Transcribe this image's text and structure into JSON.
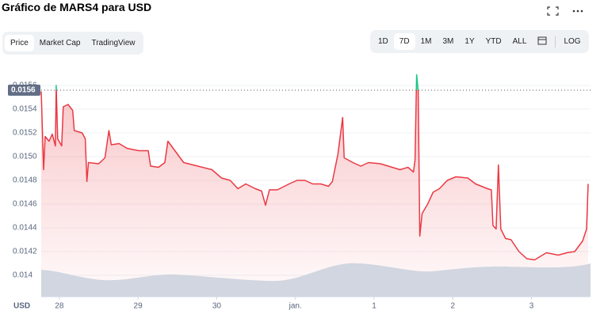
{
  "header": {
    "title": "Gráfico de MARS4 para USD",
    "tabs": [
      "Price",
      "Market Cap",
      "TradingView"
    ],
    "selected_tab": 0,
    "ranges": [
      "1D",
      "7D",
      "1M",
      "3M",
      "1Y",
      "YTD",
      "ALL"
    ],
    "selected_range": 1,
    "log_button": "LOG"
  },
  "chart_data": {
    "type": "line",
    "currency_label": "USD",
    "x": [
      -0.23,
      -0.2,
      -0.18,
      -0.13,
      -0.09,
      -0.05,
      -0.04,
      -0.02,
      0.03,
      0.05,
      0.11,
      0.17,
      0.19,
      0.29,
      0.33,
      0.35,
      0.37,
      0.5,
      0.58,
      0.63,
      0.66,
      0.76,
      0.86,
      1.01,
      1.13,
      1.16,
      1.26,
      1.34,
      1.38,
      1.48,
      1.58,
      1.76,
      1.94,
      2.06,
      2.17,
      2.27,
      2.37,
      2.49,
      2.57,
      2.62,
      2.67,
      2.77,
      2.92,
      3.02,
      3.12,
      3.22,
      3.32,
      3.42,
      3.47,
      3.54,
      3.6,
      3.62,
      3.73,
      3.83,
      3.93,
      4.08,
      4.23,
      4.33,
      4.43,
      4.5,
      4.52,
      4.54,
      4.56,
      4.58,
      4.61,
      4.68,
      4.75,
      4.83,
      4.93,
      5.04,
      5.19,
      5.29,
      5.44,
      5.49,
      5.51,
      5.55,
      5.58,
      5.61,
      5.67,
      5.74,
      5.84,
      5.94,
      6.04,
      6.19,
      6.34,
      6.45,
      6.55,
      6.65,
      6.7,
      6.72
    ],
    "series": [
      {
        "name": "Price",
        "color": "#ea3943",
        "up_color": "#16c784",
        "values": [
          0.01555,
          0.01489,
          0.01517,
          0.01513,
          0.01519,
          0.01509,
          0.0156,
          0.01515,
          0.01509,
          0.01542,
          0.01544,
          0.01539,
          0.01522,
          0.0152,
          0.01515,
          0.01479,
          0.01495,
          0.01494,
          0.01499,
          0.01522,
          0.0151,
          0.01511,
          0.01507,
          0.01505,
          0.01505,
          0.01492,
          0.01491,
          0.01495,
          0.01513,
          0.01504,
          0.01495,
          0.01492,
          0.01489,
          0.01482,
          0.0148,
          0.01473,
          0.01477,
          0.01473,
          0.01471,
          0.01459,
          0.01472,
          0.01472,
          0.01477,
          0.0148,
          0.0148,
          0.01477,
          0.01477,
          0.01475,
          0.01479,
          0.01502,
          0.01533,
          0.01499,
          0.01495,
          0.01492,
          0.01495,
          0.01494,
          0.01491,
          0.01489,
          0.01491,
          0.01487,
          0.01497,
          0.01569,
          0.01555,
          0.01433,
          0.01452,
          0.0146,
          0.0147,
          0.01473,
          0.0148,
          0.01483,
          0.01482,
          0.01477,
          0.01473,
          0.01472,
          0.01442,
          0.01439,
          0.01493,
          0.01439,
          0.01431,
          0.0143,
          0.0142,
          0.01414,
          0.01413,
          0.01419,
          0.01417,
          0.01419,
          0.0142,
          0.01429,
          0.01439,
          0.01477
        ]
      }
    ],
    "price_marker": {
      "value": 0.01556,
      "label": "0.0156"
    },
    "xlim": [
      -0.23,
      6.75
    ],
    "xticks": [
      {
        "value": 0,
        "label": "28"
      },
      {
        "value": 1,
        "label": "29"
      },
      {
        "value": 2,
        "label": "30"
      },
      {
        "value": 3,
        "label": "jan."
      },
      {
        "value": 4,
        "label": "1"
      },
      {
        "value": 5,
        "label": "2"
      },
      {
        "value": 6,
        "label": "3"
      }
    ],
    "ylim": [
      0.01382,
      0.01572
    ],
    "yticks": [
      0.014,
      {
        "value": 0.0142,
        "label": "0.0142"
      },
      {
        "value": 0.0144,
        "label": "0.0144"
      },
      {
        "value": 0.0146,
        "label": "0.0146"
      },
      {
        "value": 0.0148,
        "label": "0.0148"
      },
      {
        "value": 0.015,
        "label": "0.0150"
      },
      {
        "value": 0.0152,
        "label": "0.0152"
      },
      {
        "value": 0.0154,
        "label": "0.0154"
      },
      {
        "value": 0.0156,
        "label": "0.0156"
      }
    ],
    "grid": true
  }
}
